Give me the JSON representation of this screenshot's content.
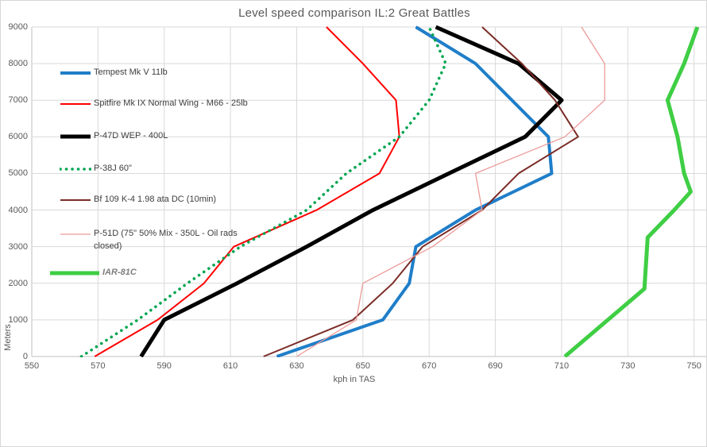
{
  "title": "Level speed comparison IL:2 Great Battles",
  "axes": {
    "x_label": "kph in TAS",
    "y_label": "Meters",
    "x_ticks": [
      550,
      570,
      590,
      610,
      630,
      650,
      670,
      690,
      710,
      730,
      750
    ],
    "y_ticks": [
      0,
      1000,
      2000,
      3000,
      4000,
      5000,
      6000,
      7000,
      8000,
      9000
    ]
  },
  "colors": {
    "grid": "#d9d9d9",
    "axis_line": "#bfbfbf",
    "tick_text": "#595959",
    "title_text": "#595959"
  },
  "chart_data": {
    "type": "line",
    "title": "Level speed comparison IL:2 Great Battles",
    "xlabel": "kph in TAS",
    "ylabel": "Meters",
    "xlim": [
      550,
      750
    ],
    "ylim": [
      0,
      9000
    ],
    "grid": true,
    "legend_position": "inside top-left",
    "series": [
      {
        "id": "tempest",
        "name": "Tempest Mk V 11lb",
        "color": "#1f7ec9",
        "width": 4,
        "style": "solid",
        "points": [
          [
            624,
            0
          ],
          [
            656,
            1000
          ],
          [
            664,
            2000
          ],
          [
            666,
            3000
          ],
          [
            684,
            4000
          ],
          [
            707,
            5000
          ],
          [
            706,
            6000
          ],
          [
            695,
            7000
          ],
          [
            684,
            8000
          ],
          [
            666,
            9000
          ]
        ]
      },
      {
        "id": "spitfire",
        "name": "Spitfire Mk IX Normal Wing - M66 - 25lb",
        "color": "#ff0000",
        "width": 2,
        "style": "solid",
        "points": [
          [
            569,
            0
          ],
          [
            588,
            1000
          ],
          [
            602,
            2000
          ],
          [
            611,
            3000
          ],
          [
            636,
            4000
          ],
          [
            655,
            5000
          ],
          [
            661,
            6000
          ],
          [
            660,
            7000
          ],
          [
            650,
            8000
          ],
          [
            639,
            9000
          ]
        ]
      },
      {
        "id": "p47d",
        "name": "P-47D WEP - 400L",
        "color": "#000000",
        "width": 5,
        "style": "solid",
        "points": [
          [
            583,
            0
          ],
          [
            590,
            1000
          ],
          [
            612,
            2000
          ],
          [
            633,
            3000
          ],
          [
            653,
            4000
          ],
          [
            676,
            5000
          ],
          [
            699,
            6000
          ],
          [
            710,
            7000
          ],
          [
            697,
            8000
          ],
          [
            672,
            9000
          ]
        ]
      },
      {
        "id": "p38j",
        "name": "P-38J 60\"",
        "color": "#00a550",
        "width": 3.6,
        "style": "dotted",
        "points": [
          [
            565,
            0
          ],
          [
            582,
            1000
          ],
          [
            597,
            2000
          ],
          [
            613,
            3000
          ],
          [
            633,
            4000
          ],
          [
            645,
            5000
          ],
          [
            661,
            6000
          ],
          [
            670,
            7000
          ],
          [
            675,
            8000
          ],
          [
            670,
            9000
          ]
        ]
      },
      {
        "id": "bf109",
        "name": "Bf 109 K-4 1.98 ata DC (10min)",
        "color": "#7b2c27",
        "width": 2,
        "style": "solid",
        "points": [
          [
            620,
            0
          ],
          [
            647,
            1000
          ],
          [
            659,
            2000
          ],
          [
            668,
            3000
          ],
          [
            686,
            4000
          ],
          [
            697,
            5000
          ],
          [
            715,
            6000
          ],
          [
            708,
            7000
          ],
          [
            698,
            8000
          ],
          [
            686,
            9000
          ]
        ]
      },
      {
        "id": "p51d",
        "name": "P-51D (75\" 50% Mix - 350L - Oil rads closed)",
        "color": "#ec9b99",
        "width": 1.3,
        "style": "solid",
        "points": [
          [
            630,
            0
          ],
          [
            648,
            1000
          ],
          [
            650,
            2000
          ],
          [
            671,
            3000
          ],
          [
            686,
            4000
          ],
          [
            684,
            5000
          ],
          [
            711,
            6000
          ],
          [
            723,
            7000
          ],
          [
            723,
            8000
          ],
          [
            716,
            9000
          ]
        ]
      },
      {
        "id": "iar81c",
        "name": "IAR-81C",
        "color": "#3fce44",
        "width": 5,
        "style": "solid",
        "points": [
          [
            711,
            0
          ],
          [
            735,
            1850
          ],
          [
            736,
            3250
          ],
          [
            744,
            4000
          ],
          [
            749,
            4500
          ],
          [
            747,
            5000
          ],
          [
            745,
            6000
          ],
          [
            742,
            7000
          ],
          [
            747,
            8000
          ],
          [
            751,
            9000
          ]
        ]
      }
    ]
  }
}
